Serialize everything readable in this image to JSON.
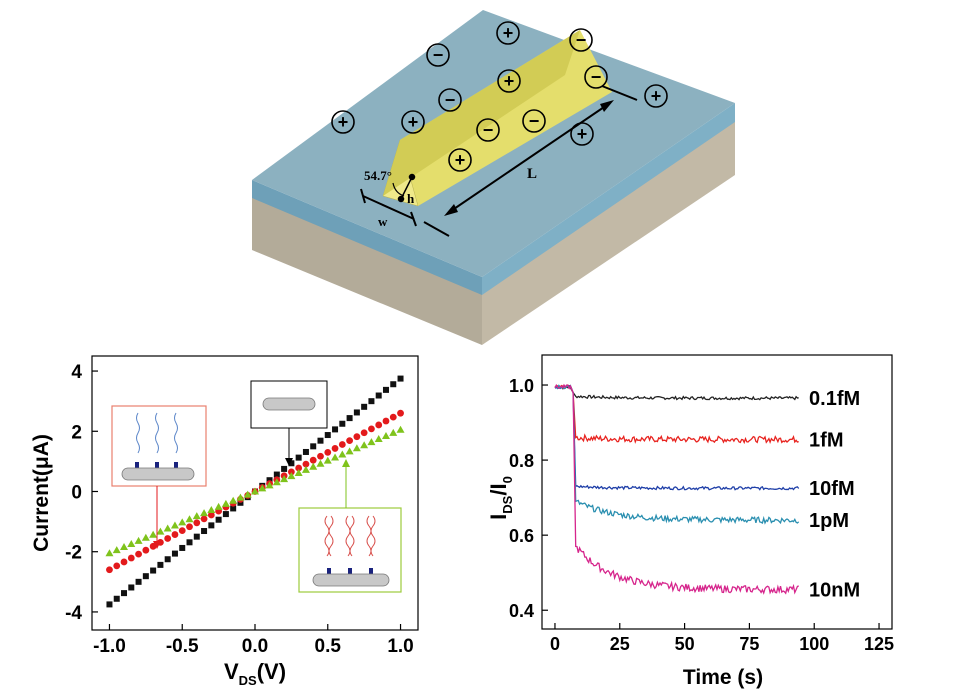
{
  "device": {
    "angle_label": "54.7°",
    "height_label": "h",
    "width_label": "w",
    "length_label": "L",
    "ion_labels": [
      "+",
      "−",
      "+",
      "−",
      "+",
      "−",
      "+",
      "−",
      "−",
      "+",
      "−",
      "+",
      "+",
      "−",
      "+"
    ],
    "ion_signs": [
      "+",
      "-",
      "+",
      "-",
      "+",
      "-",
      "+",
      "-",
      "-",
      "+",
      "-",
      "+",
      "+",
      "-",
      "+"
    ]
  },
  "chart_data": [
    {
      "type": "scatter",
      "xlabel_main": "V",
      "xlabel_sub": "DS",
      "xlabel_unit": "(V)",
      "ylabel": "Current(μA)",
      "xlim": [
        -1.12,
        1.12
      ],
      "ylim": [
        -4.6,
        4.5
      ],
      "x_ticks": [
        -1.0,
        -0.5,
        0.0,
        0.5,
        1.0
      ],
      "x_tick_labels": [
        "-1.0",
        "-0.5",
        "0.0",
        "0.5",
        "1.0"
      ],
      "y_ticks": [
        -4,
        -2,
        0,
        2,
        4
      ],
      "y_tick_labels": [
        "-4",
        "-2",
        "0",
        "2",
        "4"
      ],
      "x_range": [
        -1.0,
        1.0
      ],
      "n_points": 41,
      "series": [
        {
          "name": "bare",
          "marker": "square",
          "color": "#111111",
          "slope": 3.75,
          "offset": 0.0
        },
        {
          "name": "probe",
          "marker": "circle",
          "color": "#e31a1c",
          "slope": 2.6,
          "offset": 0.0
        },
        {
          "name": "hybridized",
          "marker": "triangle",
          "color": "#7fc31c",
          "slope": 2.05,
          "offset": 0.0
        }
      ]
    },
    {
      "type": "line",
      "xlabel": "Time (s)",
      "ylabel_main": "I",
      "ylabel_sub1": "DS",
      "ylabel_slash": "/I",
      "ylabel_sub2": "0",
      "xlim": [
        -5,
        130
      ],
      "ylim": [
        0.35,
        1.08
      ],
      "x_ticks": [
        0,
        25,
        50,
        75,
        100,
        125
      ],
      "x_tick_labels": [
        "0",
        "25",
        "50",
        "75",
        "100",
        "125"
      ],
      "y_ticks": [
        0.4,
        0.6,
        0.8,
        1.0
      ],
      "y_tick_labels": [
        "0.4",
        "0.6",
        "0.8",
        "1.0"
      ],
      "series": [
        {
          "name": "0.1fM",
          "color": "#222222",
          "plateau": 0.965,
          "noise": 0.004,
          "drop_end": 0.97
        },
        {
          "name": "1fM",
          "color": "#e8231f",
          "plateau": 0.855,
          "noise": 0.008,
          "drop_end": 0.86
        },
        {
          "name": "10fM",
          "color": "#1f3fa8",
          "plateau": 0.725,
          "noise": 0.004,
          "drop_end": 0.73
        },
        {
          "name": "1pM",
          "color": "#2a8fb0",
          "plateau": 0.64,
          "noise": 0.008,
          "drop_end": 0.69
        },
        {
          "name": "10nM",
          "color": "#d6258c",
          "plateau": 0.455,
          "noise": 0.01,
          "drop_end": 0.57
        }
      ],
      "legend_labels": [
        "0.1fM",
        "1fM",
        "10fM",
        "1pM",
        "10nM"
      ]
    }
  ]
}
